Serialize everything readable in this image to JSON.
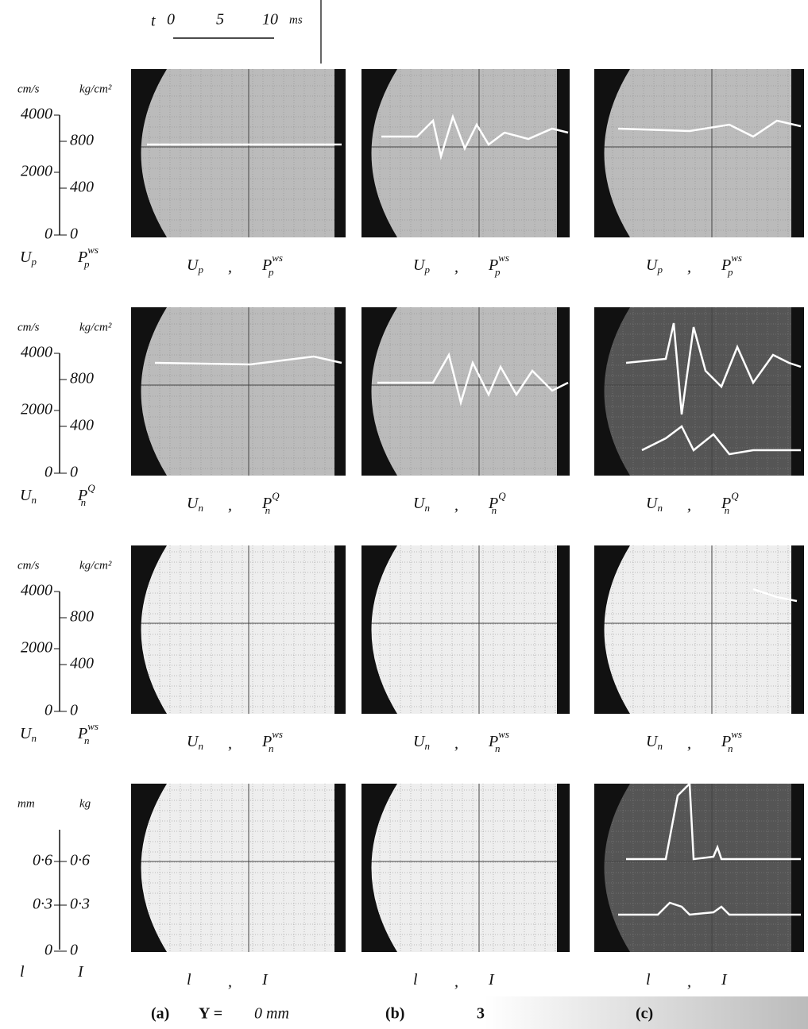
{
  "timescale": {
    "label": "t",
    "ticks": [
      "0",
      "5",
      "10"
    ],
    "unit": "ms"
  },
  "rows": [
    {
      "left_unit": "cm/s",
      "right_unit": "kg/cm²",
      "left_ticks": [
        "4000",
        "2000",
        "0"
      ],
      "right_ticks": [
        "800",
        "400",
        "0"
      ],
      "left_var": {
        "base": "U",
        "sub": "p"
      },
      "right_var": {
        "base": "P",
        "sub": "p",
        "sup": "ws"
      },
      "separator": ","
    },
    {
      "left_unit": "cm/s",
      "right_unit": "kg/cm²",
      "left_ticks": [
        "4000",
        "2000",
        "0"
      ],
      "right_ticks": [
        "800",
        "400",
        "0"
      ],
      "left_var": {
        "base": "U",
        "sub": "n"
      },
      "right_var": {
        "base": "P",
        "sub": "n",
        "sup": "Q"
      },
      "separator": ","
    },
    {
      "left_unit": "cm/s",
      "right_unit": "kg/cm²",
      "left_ticks": [
        "4000",
        "2000",
        "0"
      ],
      "right_ticks": [
        "800",
        "400",
        "0"
      ],
      "left_var": {
        "base": "U",
        "sub": "n"
      },
      "right_var": {
        "base": "P",
        "sub": "n",
        "sup": "ws"
      },
      "separator": ","
    },
    {
      "left_unit": "mm",
      "right_unit": "kg",
      "left_ticks": [
        "0·6",
        "0·3",
        "0"
      ],
      "right_ticks": [
        "0·6",
        "0·3",
        "0"
      ],
      "left_var": {
        "base": "l"
      },
      "right_var": {
        "base": "I"
      },
      "separator": ","
    }
  ],
  "footer": {
    "a": "(a)",
    "y_label": "Y =",
    "a_value": "0 mm",
    "b": "(b)",
    "b_value": "3",
    "c": "(c)"
  }
}
